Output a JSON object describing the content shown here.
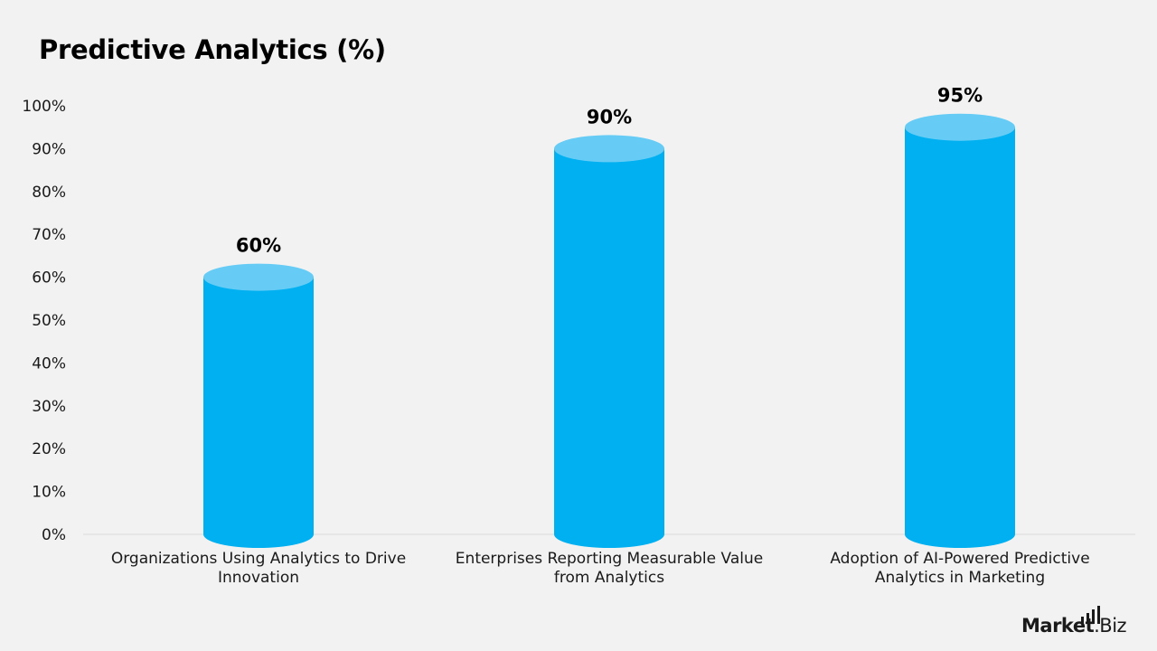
{
  "header": {
    "title": "Predictive Analytics (%)"
  },
  "brand": {
    "name_bold": "Market",
    "name_suffix": ".Biz"
  },
  "colors": {
    "background": "#f2f2f2",
    "bar_body": "#00b0f0",
    "bar_top": "#66ccf6",
    "axis_line": "#d9d9d9",
    "text": "#000000"
  },
  "chart_data": {
    "type": "bar",
    "style": "cylinder",
    "categories": [
      [
        "Organizations Using Analytics to Drive",
        "Innovation"
      ],
      [
        "Enterprises Reporting Measurable Value",
        "from Analytics"
      ],
      [
        "Adoption of AI-Powered Predictive",
        "Analytics in Marketing"
      ]
    ],
    "values": [
      60,
      90,
      95
    ],
    "data_labels": [
      "60%",
      "90%",
      "95%"
    ],
    "title": "Predictive Analytics (%)",
    "ylim": [
      0,
      100
    ],
    "y_ticks": [
      "0%",
      "10%",
      "20%",
      "30%",
      "40%",
      "50%",
      "60%",
      "70%",
      "80%",
      "90%",
      "100%"
    ],
    "grid": false,
    "legend": "none"
  }
}
